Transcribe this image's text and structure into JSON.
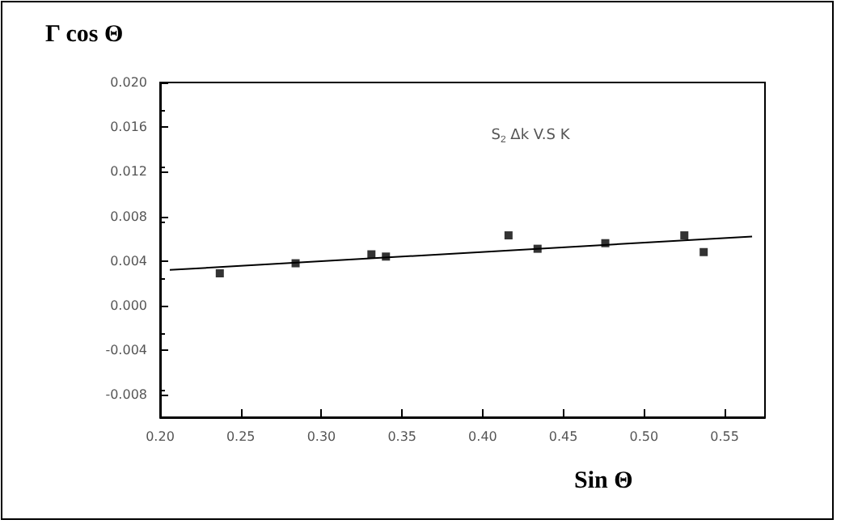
{
  "chart_data": {
    "type": "scatter",
    "xlabel": "Sin Θ",
    "ylabel": "Γ cos Θ",
    "annotations": [
      "S$_{2}$ Δk V.S K"
    ],
    "xlim": [
      0.2,
      0.575
    ],
    "xticks": [
      {
        "value": 0.2,
        "label": "0.20"
      },
      {
        "value": 0.25,
        "label": "0.25"
      },
      {
        "value": 0.3,
        "label": "0.30"
      },
      {
        "value": 0.35,
        "label": "0.35"
      },
      {
        "value": 0.4,
        "label": "0.40"
      },
      {
        "value": 0.45,
        "label": "0.45"
      },
      {
        "value": 0.5,
        "label": "0.50"
      },
      {
        "value": 0.55,
        "label": "0.55"
      }
    ],
    "ylim": [
      -0.01,
      0.02
    ],
    "yticks": [
      -0.008,
      -0.004,
      {
        "value": 0,
        "label": "0.000"
      },
      0.004,
      0.008,
      0.012,
      0.016,
      {
        "value": 0.02,
        "label": "0.020"
      }
    ],
    "marker": "square",
    "grid": false,
    "series": [
      {
        "color": "#000000",
        "x": [
          0.237,
          0.284,
          0.331,
          0.34,
          0.416,
          0.434,
          0.476,
          0.525,
          0.537
        ],
        "values": [
          0.0029,
          0.0038,
          0.0046,
          0.0044,
          0.0063,
          0.0051,
          0.0056,
          0.0063,
          0.0048
        ]
      },
      {
        "type": "line",
        "color": "#000000",
        "x": [
          0.206,
          0.567
        ],
        "values": [
          0.0032,
          0.0062
        ],
        "marker": "none"
      }
    ]
  }
}
